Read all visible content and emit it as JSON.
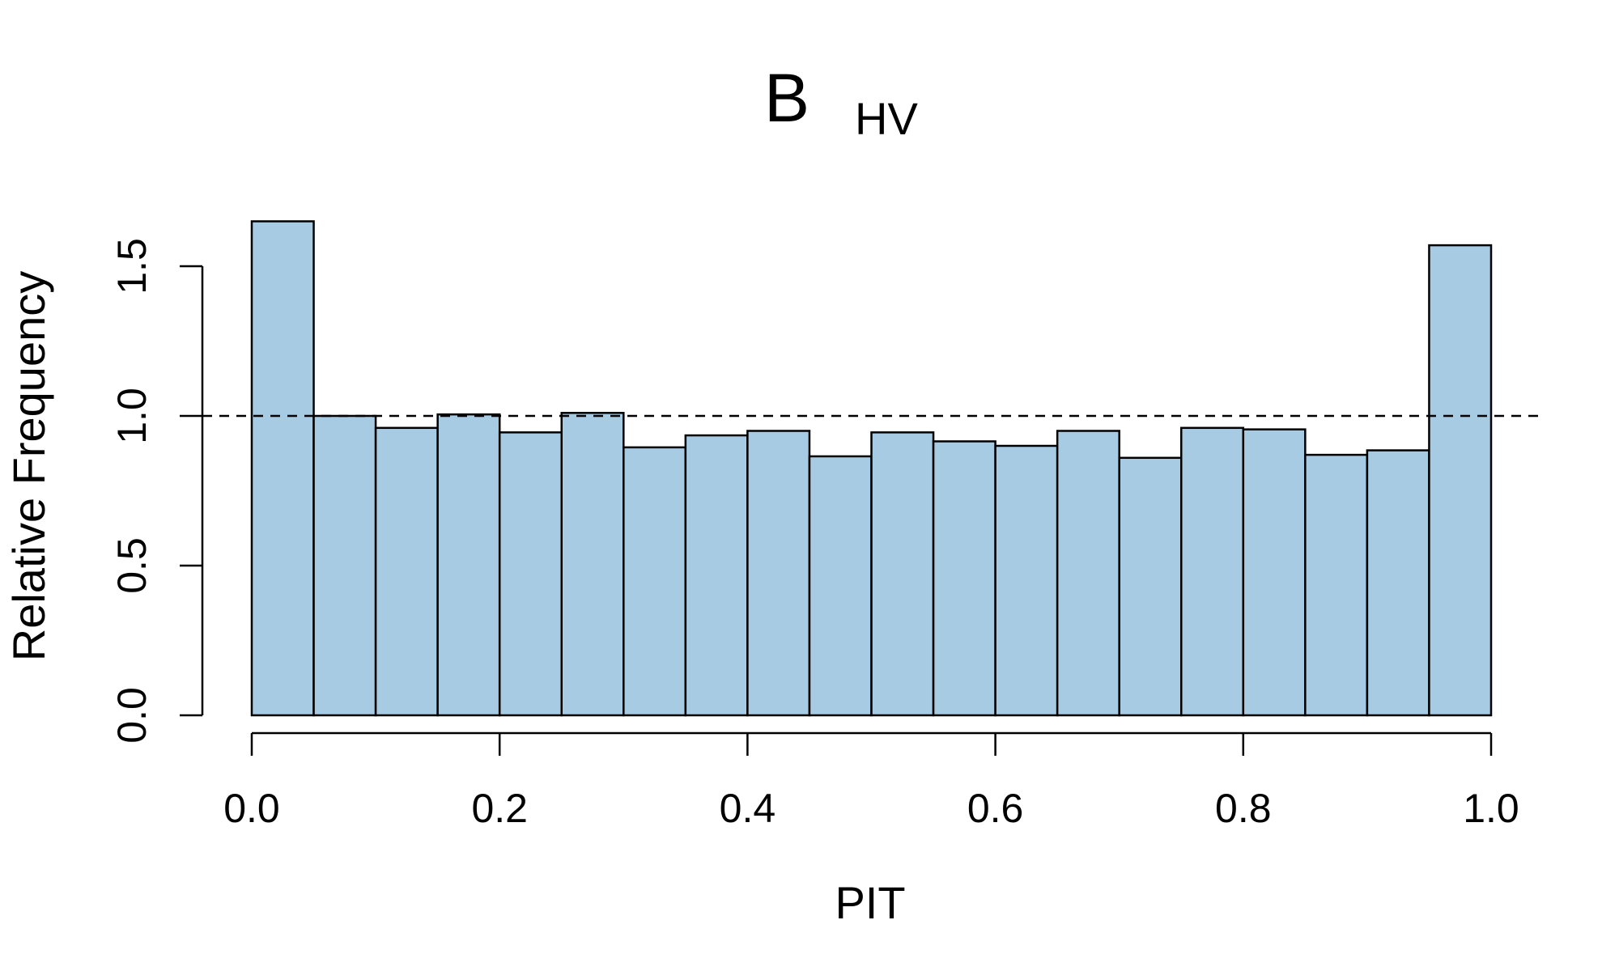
{
  "chart_data": {
    "type": "bar",
    "title": {
      "main": "B",
      "subscript": "HV"
    },
    "xlabel": "PIT",
    "ylabel": "Relative Frequency",
    "xlim": [
      0,
      1
    ],
    "ylim": [
      0,
      1.65
    ],
    "x_ticks": [
      "0.0",
      "0.2",
      "0.4",
      "0.6",
      "0.8",
      "1.0"
    ],
    "y_ticks": [
      "0.0",
      "0.5",
      "1.0",
      "1.5"
    ],
    "bin_width": 0.05,
    "bins": [
      {
        "x0": 0.0,
        "x1": 0.05,
        "value": 1.65
      },
      {
        "x0": 0.05,
        "x1": 0.1,
        "value": 1.0
      },
      {
        "x0": 0.1,
        "x1": 0.15,
        "value": 0.96
      },
      {
        "x0": 0.15,
        "x1": 0.2,
        "value": 1.005
      },
      {
        "x0": 0.2,
        "x1": 0.25,
        "value": 0.945
      },
      {
        "x0": 0.25,
        "x1": 0.3,
        "value": 1.01
      },
      {
        "x0": 0.3,
        "x1": 0.35,
        "value": 0.895
      },
      {
        "x0": 0.35,
        "x1": 0.4,
        "value": 0.935
      },
      {
        "x0": 0.4,
        "x1": 0.45,
        "value": 0.95
      },
      {
        "x0": 0.45,
        "x1": 0.5,
        "value": 0.865
      },
      {
        "x0": 0.5,
        "x1": 0.55,
        "value": 0.945
      },
      {
        "x0": 0.55,
        "x1": 0.6,
        "value": 0.915
      },
      {
        "x0": 0.6,
        "x1": 0.65,
        "value": 0.9
      },
      {
        "x0": 0.65,
        "x1": 0.7,
        "value": 0.95
      },
      {
        "x0": 0.7,
        "x1": 0.75,
        "value": 0.86
      },
      {
        "x0": 0.75,
        "x1": 0.8,
        "value": 0.96
      },
      {
        "x0": 0.8,
        "x1": 0.85,
        "value": 0.955
      },
      {
        "x0": 0.85,
        "x1": 0.9,
        "value": 0.87
      },
      {
        "x0": 0.9,
        "x1": 0.95,
        "value": 0.885
      },
      {
        "x0": 0.95,
        "x1": 1.0,
        "value": 1.57
      }
    ],
    "reference_line": {
      "y": 1.0,
      "style": "dashed"
    },
    "grid": false,
    "colors": {
      "bar_fill": "#a6cbe3",
      "bar_stroke": "#000000",
      "background": "#ffffff"
    }
  }
}
